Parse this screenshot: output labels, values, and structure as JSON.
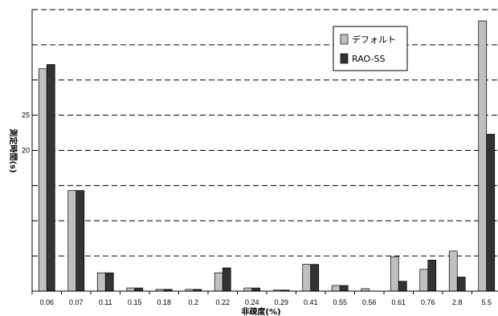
{
  "chart_data": {
    "type": "bar",
    "xlabel": "非疎度(%)",
    "ylabel": "測定時間(s)",
    "categories": [
      "0.06",
      "0.07",
      "0.11",
      "0.15",
      "0.18",
      "0.2",
      "0.22",
      "0.24",
      "0.29",
      "0.41",
      "0.55",
      "0.56",
      "0.61",
      "0.76",
      "2.8",
      "5.5"
    ],
    "series": [
      {
        "name": "デフォルト",
        "color": "#c0c0c0",
        "values": [
          31.6,
          14.3,
          2.6,
          0.45,
          0.25,
          0.25,
          2.6,
          0.45,
          0.15,
          3.8,
          0.8,
          0.35,
          4.9,
          3.1,
          5.7,
          38.4
        ]
      },
      {
        "name": "RAO-SS",
        "color": "#333333",
        "values": [
          32.2,
          14.3,
          2.6,
          0.45,
          0.25,
          0.25,
          3.3,
          0.45,
          0.15,
          3.8,
          0.8,
          0.0,
          1.4,
          4.4,
          2.0,
          22.3
        ]
      }
    ],
    "yticks_labeled": [
      "20",
      "25"
    ],
    "ylim": [
      0,
      40
    ],
    "grid": true,
    "legend_position": "top-right"
  }
}
